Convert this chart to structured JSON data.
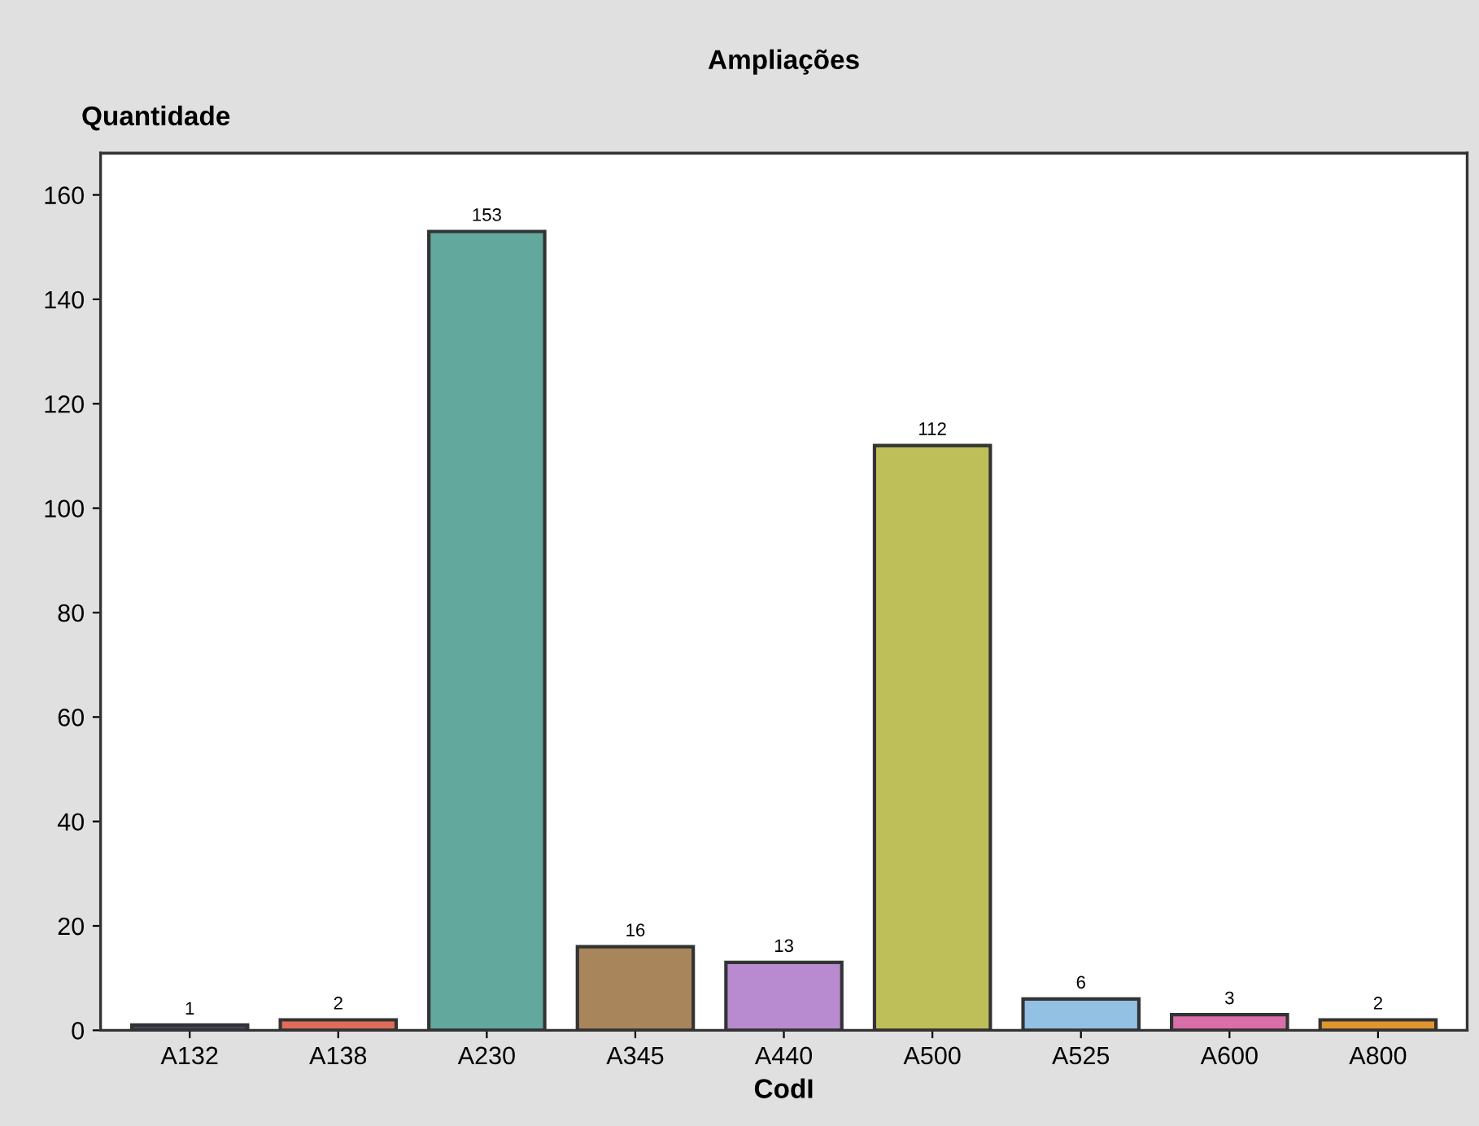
{
  "chart_data": {
    "type": "bar",
    "title": "Ampliações",
    "xlabel": "CodI",
    "ylabel": "Quantidade",
    "categories": [
      "A132",
      "A138",
      "A230",
      "A345",
      "A440",
      "A500",
      "A525",
      "A600",
      "A800"
    ],
    "values": [
      1,
      2,
      153,
      16,
      13,
      112,
      6,
      3,
      2
    ],
    "colors": [
      "#3b4a6b",
      "#e06c5a",
      "#62a89c",
      "#a8855a",
      "#b88ad0",
      "#bfbf5a",
      "#93c1e4",
      "#d86fa8",
      "#e0952e"
    ],
    "ylim": [
      0,
      168
    ],
    "yticks": [
      0,
      20,
      40,
      60,
      80,
      100,
      120,
      140,
      160
    ],
    "data_labels": true,
    "grid": false,
    "legend": false
  }
}
